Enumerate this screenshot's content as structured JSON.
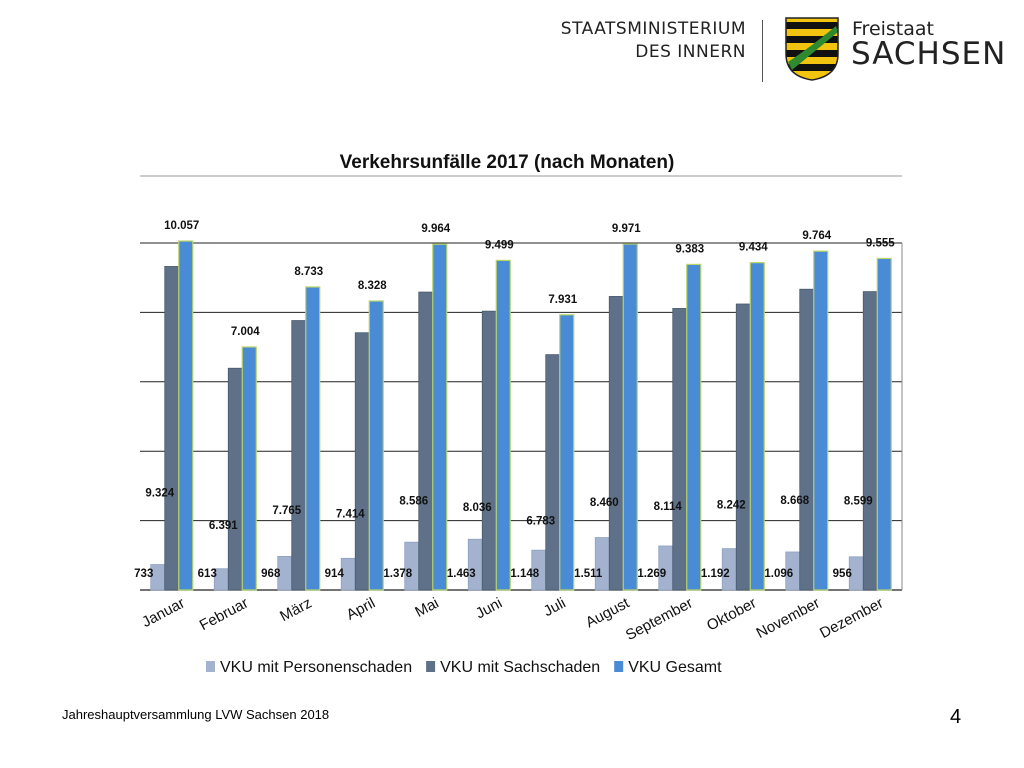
{
  "header": {
    "ministry_line1": "STAATSMINISTERIUM",
    "ministry_line2": "DES INNERN",
    "state_line1": "Freistaat",
    "state_line2": "SACHSEN"
  },
  "chart_data": {
    "type": "bar",
    "title": "Verkehrsunfälle 2017 (nach Monaten)",
    "categories": [
      "Januar",
      "Februar",
      "März",
      "April",
      "Mai",
      "Juni",
      "Juli",
      "August",
      "September",
      "Oktober",
      "November",
      "Dezember"
    ],
    "series": [
      {
        "name": "VKU mit Personenschaden",
        "color": "#a3b3cf",
        "values": [
          733,
          613,
          968,
          914,
          1378,
          1463,
          1148,
          1511,
          1269,
          1192,
          1096,
          956
        ],
        "labels": [
          "733",
          "613",
          "968",
          "914",
          "1.378",
          "1.463",
          "1.148",
          "1.511",
          "1.269",
          "1.192",
          "1.096",
          "956"
        ]
      },
      {
        "name": "VKU mit Sachschaden",
        "color": "#5e7189",
        "values": [
          9324,
          6391,
          7765,
          7414,
          8586,
          8036,
          6783,
          8460,
          8114,
          8242,
          8668,
          8599
        ],
        "labels": [
          "9.324",
          "6.391",
          "7.765",
          "7.414",
          "8.586",
          "8.036",
          "6.783",
          "8.460",
          "8.114",
          "8.242",
          "8.668",
          "8.599"
        ]
      },
      {
        "name": "VKU Gesamt",
        "color": "#4a8bd6",
        "values": [
          10057,
          7004,
          8733,
          8328,
          9964,
          9499,
          7931,
          9971,
          9383,
          9434,
          9764,
          9555
        ],
        "labels": [
          "10.057",
          "7.004",
          "8.733",
          "8.328",
          "9.964",
          "9.499",
          "7.931",
          "9.971",
          "9.383",
          "9.434",
          "9.764",
          "9.555"
        ]
      }
    ],
    "ylim": [
      0,
      10000
    ],
    "grid": true,
    "legend_position": "bottom"
  },
  "footer": {
    "text": "Jahreshauptversammlung LVW Sachsen 2018",
    "page_number": "4"
  }
}
